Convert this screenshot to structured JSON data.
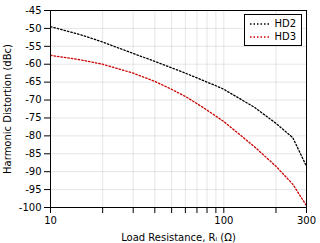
{
  "chart_data": {
    "type": "line",
    "xlabel": "Load Resistance, Rₗ (Ω)",
    "ylabel": "Harmonic Distortion (dBc)",
    "x": [
      10,
      15,
      20,
      30,
      40,
      50,
      60,
      70,
      80,
      90,
      100,
      150,
      200,
      250,
      300
    ],
    "series": [
      {
        "name": "HD2",
        "color": "#000000",
        "line_style": "dotted",
        "values": [
          -49.5,
          -51.8,
          -53.8,
          -57.0,
          -59.2,
          -61.0,
          -62.5,
          -63.8,
          -65.0,
          -66.0,
          -67.0,
          -72.0,
          -76.5,
          -80.5,
          -88.5
        ]
      },
      {
        "name": "HD3",
        "color": "#cc0000",
        "line_style": "dotted",
        "values": [
          -57.5,
          -58.8,
          -60.0,
          -62.5,
          -64.8,
          -67.0,
          -69.0,
          -71.0,
          -72.8,
          -74.5,
          -76.0,
          -83.0,
          -88.5,
          -93.5,
          -99.5
        ]
      }
    ],
    "log": "x",
    "xlim": [
      10,
      300
    ],
    "ylim": [
      -100,
      -45
    ],
    "xticks": [
      10,
      {
        "value": 20,
        "label": null
      },
      {
        "value": 30,
        "label": null
      },
      {
        "value": 40,
        "label": null
      },
      {
        "value": 50,
        "label": null
      },
      {
        "value": 60,
        "label": null
      },
      {
        "value": 70,
        "label": null
      },
      {
        "value": 80,
        "label": null
      },
      {
        "value": 90,
        "label": null
      },
      100,
      {
        "value": 200,
        "label": null
      },
      300
    ],
    "yticks": [
      -45,
      -50,
      -55,
      -60,
      -65,
      -70,
      -75,
      -80,
      -85,
      -90,
      -95,
      -100
    ],
    "grid": true,
    "legend": "upper right"
  }
}
